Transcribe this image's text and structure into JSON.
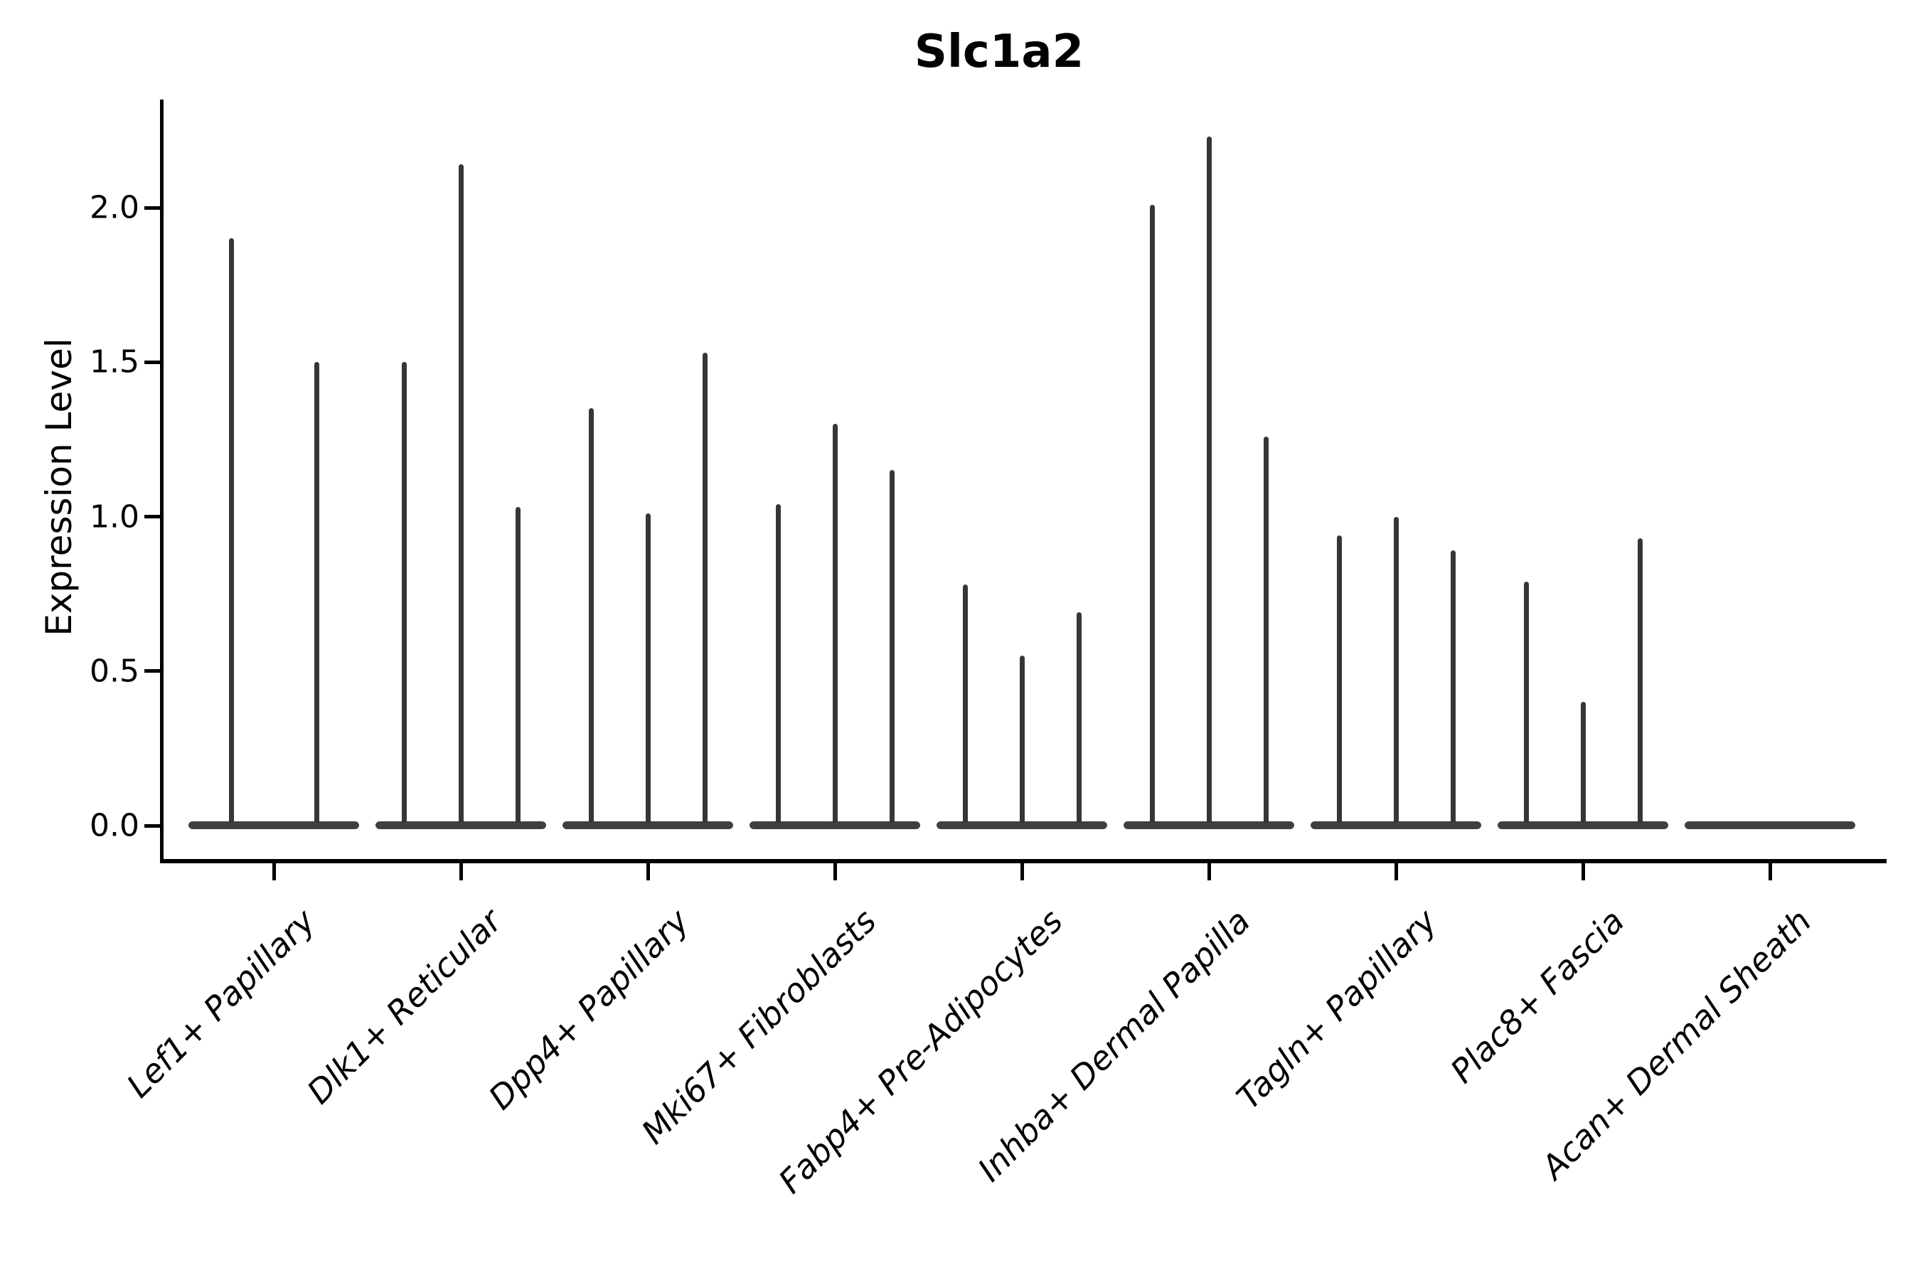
{
  "title": "Slc1a2",
  "ylabel": "Expression Level",
  "background_color": "#ffffff",
  "chart_data": {
    "type": "violin",
    "title": "Slc1a2",
    "xlabel": "",
    "ylabel": "Expression Level",
    "ylim": [
      -0.11,
      2.35
    ],
    "yticks": [
      0.0,
      0.5,
      1.0,
      1.5,
      2.0
    ],
    "ytick_labels": [
      "0.0",
      "0.5",
      "1.0",
      "1.5",
      "2.0"
    ],
    "grid": false,
    "legend": null,
    "violin_fill_color": "#3f3f3f",
    "violin_line_color": "#363636",
    "axis_color": "#000000",
    "description": "Very narrow violins: each category shows a thick flat base at expression 0 with thin spikes reaching the maximum expression of each violin.",
    "categories": [
      "Lef1+ Papillary",
      "Dlk1+ Reticular",
      "Dpp4+ Papillary",
      "Mki67+ Fibroblasts",
      "Fabp4+ Pre-Adipocytes",
      "Inhba+ Dermal Papilla",
      "Tagln+ Papillary",
      "Plac8+ Fascia",
      "Acan+ Dermal Sheath"
    ],
    "groups": [
      {
        "label": "Lef1+ Papillary",
        "violin_max_values": [
          1.9,
          1.5
        ]
      },
      {
        "label": "Dlk1+ Reticular",
        "violin_max_values": [
          1.5,
          2.14,
          1.03
        ]
      },
      {
        "label": "Dpp4+ Papillary",
        "violin_max_values": [
          1.35,
          1.01,
          1.53
        ]
      },
      {
        "label": "Mki67+ Fibroblasts",
        "violin_max_values": [
          1.04,
          1.3,
          1.15
        ]
      },
      {
        "label": "Fabp4+ Pre-Adipocytes",
        "violin_max_values": [
          0.78,
          0.55,
          0.69
        ]
      },
      {
        "label": "Inhba+ Dermal Papilla",
        "violin_max_values": [
          2.01,
          2.23,
          1.26
        ]
      },
      {
        "label": "Tagln+ Papillary",
        "violin_max_values": [
          0.94,
          1.0,
          0.89
        ]
      },
      {
        "label": "Plac8+ Fascia",
        "violin_max_values": [
          0.79,
          0.4,
          0.93
        ]
      },
      {
        "label": "Acan+ Dermal Sheath",
        "violin_max_values": [
          0,
          0,
          0
        ]
      }
    ]
  }
}
